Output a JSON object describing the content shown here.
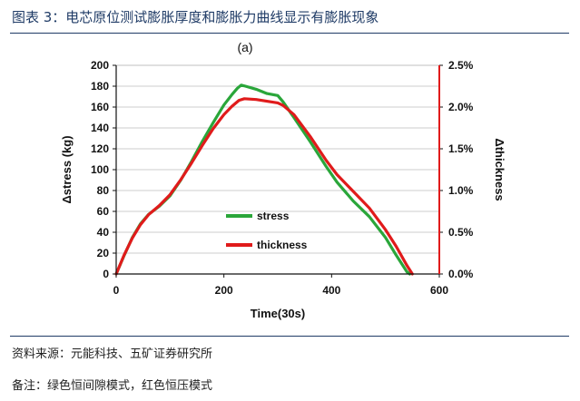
{
  "figure": {
    "title": "图表 3：电芯原位测试膨胀厚度和膨胀力曲线显示有膨胀现象",
    "source": "资料来源：元能科技、五矿证券研究所",
    "remark": "备注：绿色恒间隙模式，红色恒压模式"
  },
  "colors": {
    "stress": "#2aa63a",
    "thickness": "#e01b1b",
    "frame": "#1f3b66",
    "grid": "#cccccc"
  },
  "chart_data": {
    "type": "line",
    "panel_label": "(a)",
    "xlabel": "Time(30s)",
    "ylabel": "Δstress (kg)",
    "y2label": "Δthickness",
    "xlim": [
      0,
      600
    ],
    "ylim": [
      0,
      200
    ],
    "y2lim": [
      0,
      2.5
    ],
    "x_ticks": [
      "0",
      "200",
      "400",
      "600"
    ],
    "y_ticks": [
      "0",
      "20",
      "40",
      "60",
      "80",
      "100",
      "120",
      "140",
      "160",
      "180",
      "200"
    ],
    "y2_ticks": [
      "0.0%",
      "0.5%",
      "1.0%",
      "1.5%",
      "2.0%",
      "2.5%"
    ],
    "grid": "horizontal",
    "legend_position": "center",
    "series": [
      {
        "name": "stress",
        "axis": "left",
        "x": [
          0,
          15,
          30,
          45,
          60,
          80,
          100,
          120,
          140,
          160,
          180,
          200,
          215,
          225,
          232,
          240,
          260,
          280,
          300,
          310,
          330,
          360,
          390,
          410,
          440,
          470,
          500,
          520,
          540,
          545
        ],
        "y": [
          0,
          18,
          35,
          48,
          57,
          65,
          75,
          90,
          108,
          127,
          145,
          162,
          172,
          178,
          181,
          180,
          177,
          173,
          171,
          165,
          150,
          127,
          103,
          88,
          70,
          55,
          35,
          18,
          2,
          0
        ]
      },
      {
        "name": "thickness",
        "axis": "right",
        "x": [
          0,
          15,
          30,
          45,
          60,
          80,
          100,
          120,
          140,
          160,
          180,
          200,
          215,
          228,
          238,
          260,
          280,
          300,
          310,
          330,
          360,
          390,
          410,
          440,
          470,
          500,
          520,
          540,
          550
        ],
        "y": [
          0,
          0.23,
          0.43,
          0.59,
          0.71,
          0.82,
          0.95,
          1.13,
          1.33,
          1.54,
          1.74,
          1.91,
          2.01,
          2.08,
          2.1,
          2.09,
          2.07,
          2.05,
          2.02,
          1.91,
          1.65,
          1.36,
          1.19,
          0.99,
          0.79,
          0.53,
          0.33,
          0.1,
          0
        ]
      }
    ],
    "legend": [
      {
        "name": "stress"
      },
      {
        "name": "thickness"
      }
    ]
  }
}
